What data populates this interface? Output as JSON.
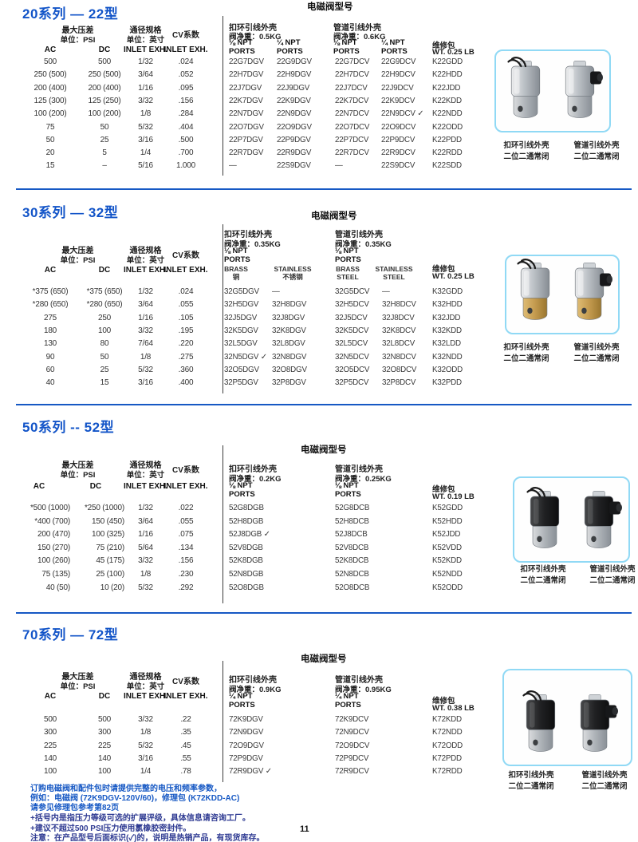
{
  "colors": {
    "accent_blue": "#1658c4",
    "note_navy": "#2e3a92",
    "photo_box_border": "#90d9f5",
    "brass": "#c9a254"
  },
  "shared": {
    "heading": "电磁阀型号",
    "cols": {
      "pressure": "最大压差",
      "pressure_unit": "单位：PSI",
      "size": "通径规格",
      "size_unit": "单位：英寸",
      "cv": "CV系数",
      "ac": "AC",
      "dc": "DC",
      "inlet": "INLET EXH.",
      "inlet2": "INLET EXH."
    },
    "captions": {
      "ring": {
        "a": "扣环引线外壳",
        "b": "二位二通常闭"
      },
      "pipe": {
        "a": "管道引线外壳",
        "b": "二位二通常闭"
      }
    }
  },
  "sections": [
    {
      "title": "20系列 — 22型",
      "ring": {
        "title": "扣环引线外壳",
        "weight": "阀净重：0.5KG",
        "ports": [
          {
            "a": "⅛ NPT",
            "b": "PORTS"
          },
          {
            "a": "¼ NPT",
            "b": "PORTS"
          }
        ]
      },
      "pipe": {
        "title": "管道引线外壳",
        "weight": "阀净重：0.6KG",
        "ports": [
          {
            "a": "⅛ NPT",
            "b": "PORTS"
          },
          {
            "a": "¼ NPT",
            "b": "PORTS"
          }
        ]
      },
      "kit": {
        "title": "维修包",
        "weight": "WT. 0.25 LB"
      },
      "rows": [
        [
          "500",
          "500",
          "1/32",
          ".024",
          "22G7DGV",
          "22G9DGV",
          "22G7DCV",
          "22G9DCV",
          "K22GDD"
        ],
        [
          "250 (500)",
          "250 (500)",
          "3/64",
          ".052",
          "22H7DGV",
          "22H9DGV",
          "22H7DCV",
          "22H9DCV",
          "K22HDD"
        ],
        [
          "200 (400)",
          "200 (400)",
          "1/16",
          ".095",
          "22J7DGV",
          "22J9DGV",
          "22J7DCV",
          "22J9DCV",
          "K22JDD"
        ],
        [
          "125 (300)",
          "125 (250)",
          "3/32",
          ".156",
          "22K7DGV",
          "22K9DGV",
          "22K7DCV",
          "22K9DCV",
          "K22KDD"
        ],
        [
          "100 (200)",
          "100 (200)",
          "1/8",
          ".284",
          "22N7DGV",
          "22N9DGV",
          "22N7DCV",
          "22N9DCV ✓",
          "K22NDD"
        ],
        [
          "75",
          "50",
          "5/32",
          ".404",
          "22O7DGV",
          "22O9DGV",
          "22O7DCV",
          "22O9DCV",
          "K22ODD"
        ],
        [
          "50",
          "25",
          "3/16",
          ".500",
          "22P7DGV",
          "22P9DGV",
          "22P7DCV",
          "22P9DCV",
          "K22PDD"
        ],
        [
          "20",
          "5",
          "1/4",
          ".700",
          "22R7DGV",
          "22R9DGV",
          "22R7DCV",
          "22R9DCV",
          "K22RDD"
        ],
        [
          "15",
          "–",
          "5/16",
          "1.000",
          "—",
          "22S9DGV",
          "—",
          "22S9DCV",
          "K22SDD"
        ]
      ]
    },
    {
      "title": "30系列 — 32型",
      "ring": {
        "title": "扣环引线外壳",
        "weight": "阀净重：0.35KG",
        "ports": [
          {
            "a": "⅛ NPT",
            "b": "PORTS"
          }
        ],
        "subcols": [
          {
            "a": "BRASS",
            "b": "铜"
          },
          {
            "a": "STAINLESS",
            "b": "不锈钢"
          }
        ]
      },
      "pipe": {
        "title": "管道引线外壳",
        "weight": "阀净重：0.35KG",
        "ports": [
          {
            "a": "⅛ NPT",
            "b": "PORTS"
          }
        ],
        "subcols": [
          {
            "a": "BRASS",
            "b": "STEEL"
          },
          {
            "a": "STAINLESS",
            "b": "STEEL"
          }
        ]
      },
      "kit": {
        "title": "维修包",
        "weight": "WT. 0.25 LB"
      },
      "rows": [
        [
          "*375 (650)",
          "*375 (650)",
          "1/32",
          ".024",
          "32G5DGV",
          "—",
          "32G5DCV",
          "—",
          "K32GDD"
        ],
        [
          "*280 (650)",
          "*280 (650)",
          "3/64",
          ".055",
          "32H5DGV",
          "32H8DGV",
          "32H5DCV",
          "32H8DCV",
          "K32HDD"
        ],
        [
          "275",
          "250",
          "1/16",
          ".105",
          "32J5DGV",
          "32J8DGV",
          "32J5DCV",
          "32J8DCV",
          "K32JDD"
        ],
        [
          "180",
          "100",
          "3/32",
          ".195",
          "32K5DGV",
          "32K8DGV",
          "32K5DCV",
          "32K8DCV",
          "K32KDD"
        ],
        [
          "130",
          "80",
          "7/64",
          ".220",
          "32L5DGV",
          "32L8DGV",
          "32L5DCV",
          "32L8DCV",
          "K32LDD"
        ],
        [
          "90",
          "50",
          "1/8",
          ".275",
          "32N5DGV ✓",
          "32N8DGV",
          "32N5DCV",
          "32N8DCV",
          "K32NDD"
        ],
        [
          "60",
          "25",
          "5/32",
          ".360",
          "32O5DGV",
          "32O8DGV",
          "32O5DCV",
          "32O8DCV",
          "K32ODD"
        ],
        [
          "40",
          "15",
          "3/16",
          ".400",
          "32P5DGV",
          "32P8DGV",
          "32P5DCV",
          "32P8DCV",
          "K32PDD"
        ]
      ]
    },
    {
      "title": "50系列 -- 52型",
      "ring": {
        "title": "扣环引线外壳",
        "weight": "阀净重：0.2KG",
        "ports": [
          {
            "a": "⅛ NPT",
            "b": "PORTS"
          }
        ]
      },
      "pipe": {
        "title": "管道引线外壳",
        "weight": "阀净重：0.25KG",
        "ports": [
          {
            "a": "⅛ NPT",
            "b": "PORTS"
          }
        ]
      },
      "kit": {
        "title": "维修包",
        "weight": "WT. 0.19 LB"
      },
      "rows": [
        [
          "*500 (1000)",
          "*250 (1000)",
          "1/32",
          ".022",
          "52G8DGB",
          "52G8DCB",
          "K52GDD"
        ],
        [
          "*400 (700)",
          "150 (450)",
          "3/64",
          ".055",
          "52H8DGB",
          "52H8DCB",
          "K52HDD"
        ],
        [
          "200 (470)",
          "100 (325)",
          "1/16",
          ".075",
          "52J8DGB ✓",
          "52J8DCB",
          "K52JDD"
        ],
        [
          "150 (270)",
          "75 (210)",
          "5/64",
          ".134",
          "52V8DGB",
          "52V8DCB",
          "K52VDD"
        ],
        [
          "100 (260)",
          "45 (175)",
          "3/32",
          ".156",
          "52K8DGB",
          "52K8DCB",
          "K52KDD"
        ],
        [
          "75 (135)",
          "25 (100)",
          "1/8",
          ".230",
          "52N8DGB",
          "52N8DCB",
          "K52NDD"
        ],
        [
          "40 (50)",
          "10 (20)",
          "5/32",
          ".292",
          "52O8DGB",
          "52O8DCB",
          "K52ODD"
        ]
      ]
    },
    {
      "title": "70系列 — 72型",
      "ring": {
        "title": "扣环引线外壳",
        "weight": "阀净重：0.9KG",
        "ports": [
          {
            "a": "¼ NPT",
            "b": "PORTS"
          }
        ]
      },
      "pipe": {
        "title": "管道引线外壳",
        "weight": "阀净重：0.95KG",
        "ports": [
          {
            "a": "¼ NPT",
            "b": "PORTS"
          }
        ]
      },
      "kit": {
        "title": "维修包",
        "weight": "WT. 0.38 LB"
      },
      "rows": [
        [
          "500",
          "500",
          "3/32",
          ".22",
          "72K9DGV",
          "72K9DCV",
          "K72KDD"
        ],
        [
          "300",
          "300",
          "1/8",
          ".35",
          "72N9DGV",
          "72N9DCV",
          "K72NDD"
        ],
        [
          "225",
          "225",
          "5/32",
          ".45",
          "72O9DGV",
          "72O9DCV",
          "K72ODD"
        ],
        [
          "140",
          "140",
          "3/16",
          ".55",
          "72P9DGV",
          "72P9DCV",
          "K72PDD"
        ],
        [
          "100",
          "100",
          "1/4",
          ".78",
          "72R9DGV ✓",
          "72R9DCV",
          "K72RDD"
        ]
      ]
    }
  ],
  "footer": {
    "lines": [
      "订购电磁阀和配件包时请提供完整的电压和频率参数，",
      "例如：电磁阀 (72K9DGV-120V/60)，修理包 (K72KDD-AC)",
      "请参见修理包参考第82页",
      "+括号内是指压力等级可选的扩展评级，具体信息请咨询工厂。",
      "+建议不超过500 PSI压力使用氯橡胶密封件。",
      "注意：在产品型号后面标识(✓)的，说明是热销产品，有现货库存。"
    ],
    "page": "11"
  }
}
